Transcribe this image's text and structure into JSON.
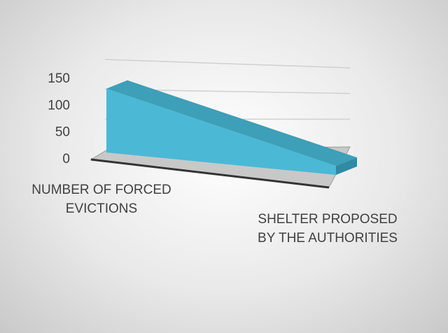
{
  "chart_data": {
    "type": "area3d",
    "categories": [
      "NUMBER OF FORCED EVICTIONS",
      "SHELTER PROPOSED BY THE AUTHORITIES"
    ],
    "values": [
      120,
      20
    ],
    "color": "#4bb8d6",
    "ylim": [
      0,
      150
    ],
    "yticks": [
      0,
      50,
      100,
      150
    ],
    "grid": true
  }
}
